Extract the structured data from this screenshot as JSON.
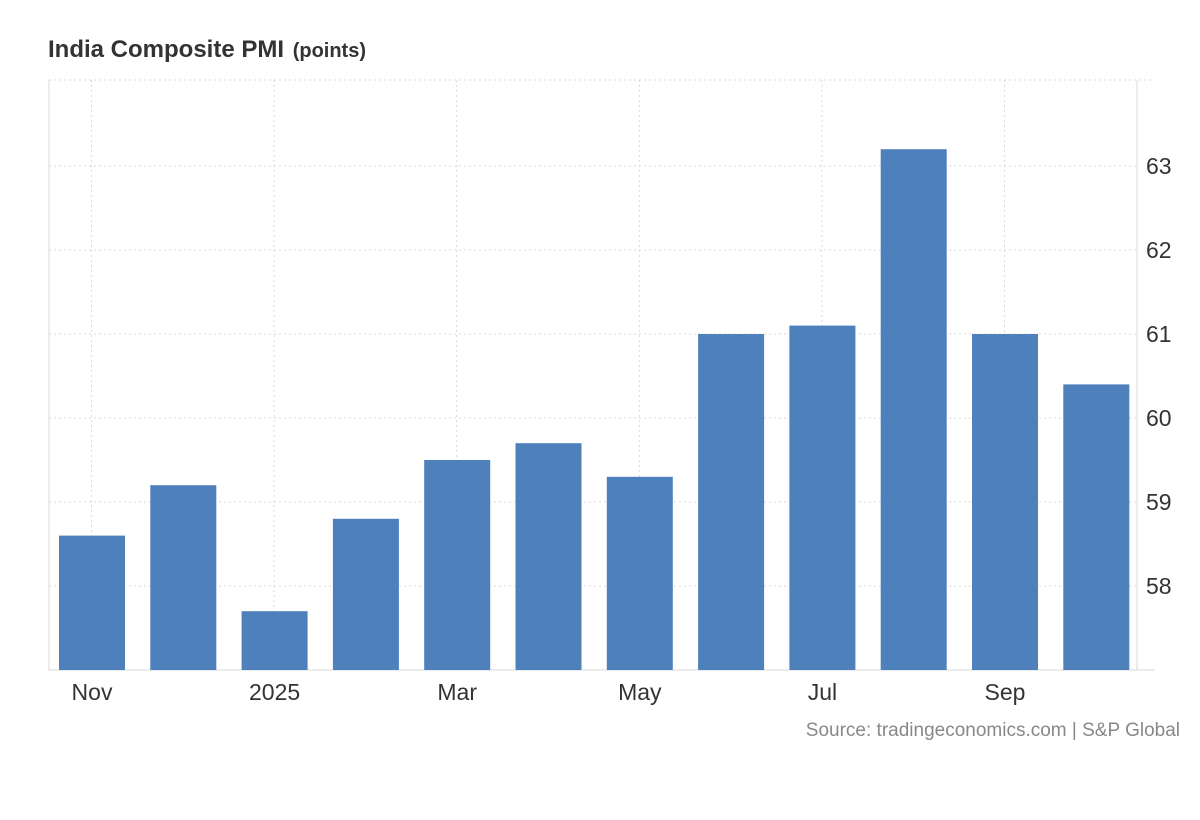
{
  "chart_data": {
    "type": "bar",
    "title": "India Composite PMI",
    "unit": "(points)",
    "months": [
      "2024-11",
      "2024-12",
      "2025-01",
      "2025-02",
      "2025-03",
      "2025-04",
      "2025-05",
      "2025-06",
      "2025-07",
      "2025-08",
      "2025-09",
      "2025-10"
    ],
    "values": [
      58.6,
      59.2,
      57.7,
      58.8,
      59.5,
      59.7,
      59.3,
      61.0,
      61.1,
      63.2,
      61.0,
      60.4
    ],
    "x_ticks": [
      {
        "label": "Nov",
        "month": "2024-11"
      },
      {
        "label": "2025",
        "month": "2025-01"
      },
      {
        "label": "Mar",
        "month": "2025-03"
      },
      {
        "label": "May",
        "month": "2025-05"
      },
      {
        "label": "Jul",
        "month": "2025-07"
      },
      {
        "label": "Sep",
        "month": "2025-09"
      }
    ],
    "y_ticks": [
      58,
      59,
      60,
      61,
      62,
      63
    ],
    "ylim": [
      57,
      64
    ],
    "y_axis_side": "right",
    "grid": true,
    "bar_color": "#4e80bc"
  },
  "source": "Source: tradingeconomics.com | S&P Global"
}
